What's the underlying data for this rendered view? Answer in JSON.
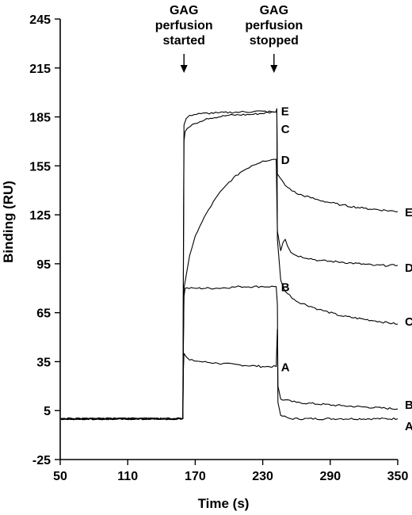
{
  "chart_data": {
    "type": "line",
    "title": "",
    "xlabel": "Time (s)",
    "ylabel": "Binding (RU)",
    "xlim": [
      50,
      350
    ],
    "ylim": [
      -25,
      245
    ],
    "x_ticks": [
      50,
      110,
      170,
      230,
      290,
      350
    ],
    "y_ticks": [
      -25,
      5,
      35,
      65,
      95,
      125,
      155,
      185,
      215,
      245
    ],
    "grid": false,
    "annotations": [
      {
        "lines": [
          "GAG",
          "perfusion",
          "started"
        ],
        "x": 160
      },
      {
        "lines": [
          "GAG",
          "perfusion",
          "stopped"
        ],
        "x": 240
      }
    ],
    "series": [
      {
        "name": "A",
        "label_points": [
          {
            "x": 240,
            "y": 32
          },
          {
            "x": 350,
            "y": -4
          }
        ],
        "points": [
          [
            50,
            0
          ],
          [
            159,
            0
          ],
          [
            159.5,
            30
          ],
          [
            160,
            40
          ],
          [
            162,
            38
          ],
          [
            165,
            36
          ],
          [
            175,
            35
          ],
          [
            190,
            34
          ],
          [
            210,
            33
          ],
          [
            230,
            32
          ],
          [
            242,
            32
          ],
          [
            243,
            55
          ],
          [
            243.5,
            10
          ],
          [
            246,
            2
          ],
          [
            255,
            0
          ],
          [
            300,
            0
          ],
          [
            350,
            0
          ]
        ]
      },
      {
        "name": "B",
        "label_points": [
          {
            "x": 240,
            "y": 81
          },
          {
            "x": 350,
            "y": 9
          }
        ],
        "points": [
          [
            50,
            0
          ],
          [
            159,
            0
          ],
          [
            159.5,
            45
          ],
          [
            160,
            75
          ],
          [
            161,
            80
          ],
          [
            170,
            80
          ],
          [
            190,
            80
          ],
          [
            210,
            81
          ],
          [
            230,
            81
          ],
          [
            242,
            81
          ],
          [
            243,
            70
          ],
          [
            243.5,
            20
          ],
          [
            246,
            12
          ],
          [
            260,
            10
          ],
          [
            300,
            8
          ],
          [
            350,
            6
          ]
        ]
      },
      {
        "name": "C",
        "label_points": [
          {
            "x": 240,
            "y": 178
          },
          {
            "x": 350,
            "y": 60
          }
        ],
        "points": [
          [
            50,
            0
          ],
          [
            159,
            0
          ],
          [
            159.5,
            90
          ],
          [
            160,
            170
          ],
          [
            161,
            176
          ],
          [
            163,
            178
          ],
          [
            170,
            181
          ],
          [
            180,
            184
          ],
          [
            200,
            186
          ],
          [
            220,
            186.5
          ],
          [
            240,
            188
          ],
          [
            242,
            188
          ],
          [
            242.5,
            190
          ],
          [
            243,
            110
          ],
          [
            246,
            85
          ],
          [
            250,
            78
          ],
          [
            260,
            72
          ],
          [
            280,
            67
          ],
          [
            300,
            63
          ],
          [
            330,
            60
          ],
          [
            350,
            58
          ]
        ]
      },
      {
        "name": "D",
        "label_points": [
          {
            "x": 240,
            "y": 159
          },
          {
            "x": 350,
            "y": 93
          }
        ],
        "points": [
          [
            50,
            0
          ],
          [
            159,
            0
          ],
          [
            159.5,
            50
          ],
          [
            160,
            80
          ],
          [
            165,
            100
          ],
          [
            170,
            112
          ],
          [
            180,
            126
          ],
          [
            190,
            137
          ],
          [
            200,
            145
          ],
          [
            210,
            151
          ],
          [
            220,
            155
          ],
          [
            230,
            158
          ],
          [
            240,
            159
          ],
          [
            242,
            159
          ],
          [
            243,
            115
          ],
          [
            246,
            103
          ],
          [
            248,
            108
          ],
          [
            250,
            110
          ],
          [
            252,
            106
          ],
          [
            255,
            102
          ],
          [
            260,
            100
          ],
          [
            280,
            97
          ],
          [
            300,
            96
          ],
          [
            330,
            94
          ],
          [
            350,
            94
          ]
        ]
      },
      {
        "name": "E",
        "label_points": [
          {
            "x": 240,
            "y": 189
          },
          {
            "x": 350,
            "y": 127
          }
        ],
        "points": [
          [
            50,
            0
          ],
          [
            159,
            0
          ],
          [
            159.5,
            100
          ],
          [
            160,
            180
          ],
          [
            162,
            184
          ],
          [
            165,
            186
          ],
          [
            175,
            187
          ],
          [
            190,
            187.5
          ],
          [
            210,
            188
          ],
          [
            230,
            188.5
          ],
          [
            240,
            188
          ],
          [
            242,
            188
          ],
          [
            242.5,
            190
          ],
          [
            243,
            150
          ],
          [
            245,
            148
          ],
          [
            250,
            143
          ],
          [
            260,
            138
          ],
          [
            280,
            134
          ],
          [
            300,
            131
          ],
          [
            320,
            129
          ],
          [
            350,
            127
          ]
        ]
      }
    ]
  }
}
